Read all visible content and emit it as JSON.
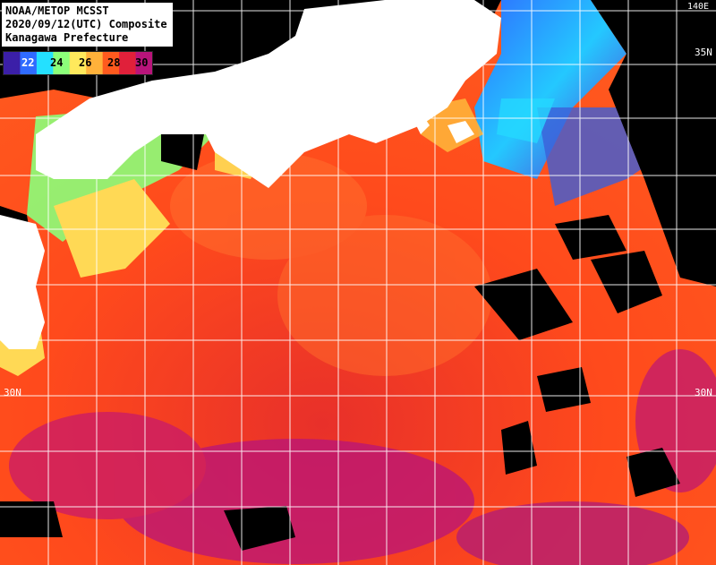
{
  "header": {
    "line1": "NOAA/METOP MCSST",
    "line2": "2020/09/12(UTC) Composite",
    "line3": "Kanagawa Prefecture"
  },
  "legend": {
    "ticks": [
      "22",
      "24",
      "26",
      "28",
      "30"
    ],
    "colors": [
      "#3b1fa8",
      "#2f6bff",
      "#24e0ff",
      "#8cff7a",
      "#ffe95c",
      "#ffb13a",
      "#ff5a1e",
      "#e0203a",
      "#b8147a"
    ]
  },
  "grid": {
    "lat_labels_left": [
      "30N"
    ],
    "lat_labels_right": [
      "35N",
      "30N"
    ],
    "right_top_label": "140E"
  },
  "colors": {
    "land": "#ffffff",
    "cloud": "#000000",
    "sea_warm": "#ff4a1c",
    "sea_hot": "#b01a78",
    "grid": "#ffffff"
  }
}
